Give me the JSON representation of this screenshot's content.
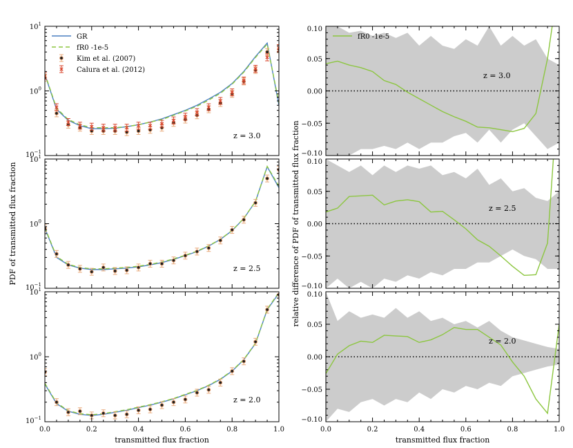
{
  "chart_data": [
    {
      "type": "line",
      "panel": "left-top",
      "yscale": "log",
      "ylim": [
        0.1,
        10
      ],
      "xlim": [
        0.0,
        1.0
      ],
      "ytick_labels": [
        {
          "base": "10",
          "exp": "1"
        },
        {
          "base": "10",
          "exp": "0"
        },
        {
          "base": "10",
          "exp": "−1"
        }
      ],
      "annotation": "z = 3.0",
      "legend": {
        "position": "top-left",
        "entries": [
          "GR",
          "fR0 -1e-5",
          "Kim et al. (2007)",
          "Calura et al. (2012)"
        ]
      },
      "series": [
        {
          "name": "GR",
          "color": "#4a7fc1",
          "x": [
            0,
            0.05,
            0.1,
            0.15,
            0.2,
            0.25,
            0.3,
            0.35,
            0.4,
            0.45,
            0.5,
            0.55,
            0.6,
            0.65,
            0.7,
            0.75,
            0.8,
            0.85,
            0.9,
            0.95,
            1.0
          ],
          "values": [
            1.8,
            0.52,
            0.35,
            0.29,
            0.26,
            0.26,
            0.265,
            0.28,
            0.3,
            0.33,
            0.37,
            0.43,
            0.5,
            0.6,
            0.75,
            0.95,
            1.3,
            2.0,
            3.4,
            5.5,
            0.6
          ]
        },
        {
          "name": "fR0 -1e-5",
          "color": "#8cc63f",
          "x": [
            0,
            0.05,
            0.1,
            0.15,
            0.2,
            0.25,
            0.3,
            0.35,
            0.4,
            0.45,
            0.5,
            0.55,
            0.6,
            0.65,
            0.7,
            0.75,
            0.8,
            0.85,
            0.9,
            0.95,
            1.0
          ],
          "values": [
            1.85,
            0.54,
            0.36,
            0.3,
            0.27,
            0.27,
            0.27,
            0.28,
            0.3,
            0.33,
            0.36,
            0.42,
            0.49,
            0.58,
            0.72,
            0.92,
            1.27,
            1.95,
            3.3,
            5.3,
            0.65
          ]
        },
        {
          "name": "Kim et al. (2007)",
          "x": [
            0,
            0.05,
            0.1,
            0.15,
            0.2,
            0.25,
            0.3,
            0.35,
            0.4,
            0.45,
            0.5,
            0.55,
            0.6,
            0.65,
            0.7,
            0.75,
            0.8,
            0.85,
            0.9,
            0.95,
            1.0
          ],
          "values": [
            1.6,
            0.45,
            0.3,
            0.27,
            0.24,
            0.24,
            0.24,
            0.23,
            0.24,
            0.25,
            0.27,
            0.32,
            0.36,
            0.42,
            0.52,
            0.65,
            0.9,
            1.4,
            2.1,
            4.0,
            4.4
          ]
        },
        {
          "name": "Calura et al. (2012)",
          "x": [
            0,
            0.05,
            0.1,
            0.15,
            0.2,
            0.25,
            0.3,
            0.35,
            0.4,
            0.45,
            0.5,
            0.55,
            0.6,
            0.65,
            0.7,
            0.75,
            0.8,
            0.85,
            0.9,
            0.95,
            1.0
          ],
          "values": [
            1.7,
            0.56,
            0.33,
            0.29,
            0.28,
            0.27,
            0.27,
            0.27,
            0.29,
            0.29,
            0.31,
            0.35,
            0.4,
            0.47,
            0.56,
            0.7,
            0.95,
            1.45,
            2.2,
            3.3,
            4.6
          ]
        }
      ]
    },
    {
      "type": "line",
      "panel": "left-middle",
      "yscale": "log",
      "ylim": [
        0.1,
        10
      ],
      "xlim": [
        0.0,
        1.0
      ],
      "ytick_labels": [
        {
          "base": "10",
          "exp": "1"
        },
        {
          "base": "10",
          "exp": "0"
        },
        {
          "base": "10",
          "exp": "−1"
        }
      ],
      "ylabel": "PDF of transmitted flux fraction",
      "annotation": "z = 2.5",
      "series": [
        {
          "name": "GR",
          "color": "#4a7fc1",
          "x": [
            0,
            0.05,
            0.1,
            0.15,
            0.2,
            0.25,
            0.3,
            0.35,
            0.4,
            0.45,
            0.5,
            0.55,
            0.6,
            0.65,
            0.7,
            0.75,
            0.8,
            0.85,
            0.9,
            0.95,
            1.0
          ],
          "values": [
            0.85,
            0.3,
            0.23,
            0.205,
            0.195,
            0.195,
            0.2,
            0.205,
            0.215,
            0.23,
            0.25,
            0.28,
            0.32,
            0.37,
            0.45,
            0.57,
            0.78,
            1.2,
            2.2,
            7.6,
            3.6
          ]
        },
        {
          "name": "fR0 -1e-5",
          "color": "#8cc63f",
          "x": [
            0,
            0.05,
            0.1,
            0.15,
            0.2,
            0.25,
            0.3,
            0.35,
            0.4,
            0.45,
            0.5,
            0.55,
            0.6,
            0.65,
            0.7,
            0.75,
            0.8,
            0.85,
            0.9,
            0.95,
            1.0
          ],
          "values": [
            0.87,
            0.31,
            0.235,
            0.21,
            0.2,
            0.2,
            0.205,
            0.21,
            0.22,
            0.235,
            0.255,
            0.285,
            0.325,
            0.375,
            0.455,
            0.575,
            0.785,
            1.21,
            2.22,
            7.7,
            3.8
          ]
        },
        {
          "name": "Kim et al. (2007)",
          "x": [
            0,
            0.05,
            0.1,
            0.15,
            0.2,
            0.25,
            0.3,
            0.35,
            0.4,
            0.45,
            0.5,
            0.55,
            0.6,
            0.65,
            0.7,
            0.75,
            0.8,
            0.85,
            0.9,
            0.95,
            1.0
          ],
          "values": [
            0.85,
            0.34,
            0.23,
            0.2,
            0.18,
            0.21,
            0.185,
            0.19,
            0.21,
            0.24,
            0.24,
            0.27,
            0.32,
            0.37,
            0.42,
            0.55,
            0.8,
            1.15,
            2.1,
            5.0,
            6.8
          ]
        }
      ]
    },
    {
      "type": "line",
      "panel": "left-bottom",
      "yscale": "log",
      "ylim": [
        0.1,
        10
      ],
      "xlim": [
        0.0,
        1.0
      ],
      "ytick_labels": [
        {
          "base": "10",
          "exp": "1"
        },
        {
          "base": "10",
          "exp": "0"
        },
        {
          "base": "10",
          "exp": "−1"
        }
      ],
      "xticks": [
        "0.0",
        "0.2",
        "0.4",
        "0.6",
        "0.8",
        "1.0"
      ],
      "xlabel": "transmitted flux fraction",
      "annotation": "z = 2.0",
      "series": [
        {
          "name": "GR",
          "color": "#4a7fc1",
          "x": [
            0,
            0.05,
            0.1,
            0.15,
            0.2,
            0.25,
            0.3,
            0.35,
            0.4,
            0.45,
            0.5,
            0.55,
            0.6,
            0.65,
            0.7,
            0.75,
            0.8,
            0.85,
            0.9,
            0.95,
            1.0
          ],
          "values": [
            0.38,
            0.19,
            0.145,
            0.13,
            0.125,
            0.13,
            0.14,
            0.15,
            0.165,
            0.18,
            0.2,
            0.225,
            0.26,
            0.3,
            0.36,
            0.45,
            0.6,
            0.9,
            1.6,
            5.3,
            9.5
          ]
        },
        {
          "name": "fR0 -1e-5",
          "color": "#8cc63f",
          "x": [
            0,
            0.05,
            0.1,
            0.15,
            0.2,
            0.25,
            0.3,
            0.35,
            0.4,
            0.45,
            0.5,
            0.55,
            0.6,
            0.65,
            0.7,
            0.75,
            0.8,
            0.85,
            0.9,
            0.95,
            1.0
          ],
          "values": [
            0.39,
            0.195,
            0.148,
            0.133,
            0.128,
            0.133,
            0.143,
            0.153,
            0.168,
            0.183,
            0.203,
            0.228,
            0.264,
            0.304,
            0.365,
            0.455,
            0.61,
            0.91,
            1.62,
            5.4,
            9.8
          ]
        },
        {
          "name": "Kim et al. (2007)",
          "x": [
            0,
            0.05,
            0.1,
            0.15,
            0.2,
            0.25,
            0.3,
            0.35,
            0.4,
            0.45,
            0.5,
            0.55,
            0.6,
            0.65,
            0.7,
            0.75,
            0.8,
            0.85,
            0.9,
            0.95,
            1.0
          ],
          "values": [
            0.58,
            0.2,
            0.14,
            0.145,
            0.125,
            0.135,
            0.125,
            0.13,
            0.15,
            0.155,
            0.18,
            0.2,
            0.22,
            0.28,
            0.31,
            0.4,
            0.6,
            0.85,
            1.7,
            5.3,
            9.0
          ]
        }
      ]
    },
    {
      "type": "area",
      "panel": "right-top",
      "ylim": [
        -0.1,
        0.1
      ],
      "xlim": [
        0.0,
        1.0
      ],
      "yticks": [
        "0.10",
        "0.05",
        "0.00",
        "−0.05",
        "−0.10"
      ],
      "annotation": "z = 3.0",
      "legend": {
        "position": "top-left",
        "entries": [
          "fR0 -1e-5"
        ]
      },
      "band": {
        "x": [
          0,
          0.05,
          0.1,
          0.15,
          0.2,
          0.25,
          0.3,
          0.35,
          0.4,
          0.45,
          0.5,
          0.55,
          0.6,
          0.65,
          0.7,
          0.75,
          0.8,
          0.85,
          0.9,
          0.95,
          1.0
        ],
        "upper": [
          0.1,
          0.1,
          0.09,
          0.093,
          0.085,
          0.09,
          0.082,
          0.09,
          0.07,
          0.085,
          0.07,
          0.065,
          0.08,
          0.07,
          0.1,
          0.07,
          0.085,
          0.07,
          0.08,
          0.05,
          0.04
        ],
        "lower": [
          -0.1,
          -0.1,
          -0.1,
          -0.09,
          -0.09,
          -0.085,
          -0.09,
          -0.08,
          -0.09,
          -0.08,
          -0.08,
          -0.07,
          -0.065,
          -0.08,
          -0.06,
          -0.08,
          -0.06,
          -0.05,
          -0.07,
          -0.09,
          -0.08
        ]
      },
      "series": [
        {
          "name": "fR0 -1e-5",
          "color": "#8cc63f",
          "x": [
            0,
            0.05,
            0.1,
            0.15,
            0.2,
            0.25,
            0.3,
            0.35,
            0.4,
            0.45,
            0.5,
            0.55,
            0.6,
            0.65,
            0.7,
            0.75,
            0.8,
            0.85,
            0.9,
            0.95,
            0.97
          ],
          "values": [
            0.042,
            0.046,
            0.04,
            0.036,
            0.03,
            0.016,
            0.01,
            -0.002,
            -0.012,
            -0.022,
            -0.032,
            -0.04,
            -0.047,
            -0.056,
            -0.057,
            -0.06,
            -0.063,
            -0.058,
            -0.035,
            0.05,
            0.1
          ]
        }
      ]
    },
    {
      "type": "area",
      "panel": "right-middle",
      "ylim": [
        -0.1,
        0.1
      ],
      "xlim": [
        0.0,
        1.0
      ],
      "yticks": [
        "0.10",
        "0.05",
        "0.00",
        "−0.05",
        "−0.10"
      ],
      "ylabel": "relative difference of PDF of transmitted flux fraction",
      "annotation": "z = 2.5",
      "band": {
        "x": [
          0,
          0.05,
          0.1,
          0.15,
          0.2,
          0.25,
          0.3,
          0.35,
          0.4,
          0.45,
          0.5,
          0.55,
          0.6,
          0.65,
          0.7,
          0.75,
          0.8,
          0.85,
          0.9,
          0.95,
          1.0
        ],
        "upper": [
          0.1,
          0.09,
          0.08,
          0.09,
          0.075,
          0.09,
          0.08,
          0.09,
          0.085,
          0.09,
          0.075,
          0.08,
          0.07,
          0.085,
          0.06,
          0.07,
          0.05,
          0.055,
          0.04,
          0.035,
          0.05
        ],
        "lower": [
          -0.1,
          -0.085,
          -0.1,
          -0.09,
          -0.1,
          -0.085,
          -0.09,
          -0.08,
          -0.085,
          -0.075,
          -0.08,
          -0.07,
          -0.07,
          -0.06,
          -0.06,
          -0.05,
          -0.04,
          -0.05,
          -0.055,
          -0.07,
          -0.07
        ]
      },
      "series": [
        {
          "name": "fR0 -1e-5",
          "color": "#8cc63f",
          "x": [
            0,
            0.05,
            0.1,
            0.15,
            0.2,
            0.25,
            0.3,
            0.35,
            0.4,
            0.45,
            0.5,
            0.55,
            0.6,
            0.65,
            0.7,
            0.75,
            0.8,
            0.85,
            0.9,
            0.95,
            0.975
          ],
          "values": [
            0.018,
            0.024,
            0.042,
            0.043,
            0.044,
            0.029,
            0.035,
            0.037,
            0.034,
            0.018,
            0.019,
            0.006,
            -0.008,
            -0.025,
            -0.035,
            -0.05,
            -0.066,
            -0.08,
            -0.079,
            -0.03,
            0.1
          ]
        }
      ]
    },
    {
      "type": "area",
      "panel": "right-bottom",
      "ylim": [
        -0.1,
        0.1
      ],
      "xlim": [
        0.0,
        1.0
      ],
      "yticks": [
        "0.10",
        "0.05",
        "0.00",
        "−0.05",
        "−0.10"
      ],
      "xticks": [
        "0.0",
        "0.2",
        "0.4",
        "0.6",
        "0.8",
        "1.0"
      ],
      "xlabel": "transmitted flux fraction",
      "annotation": "z = 2.0",
      "band": {
        "x": [
          0,
          0.05,
          0.1,
          0.15,
          0.2,
          0.25,
          0.3,
          0.35,
          0.4,
          0.45,
          0.5,
          0.55,
          0.6,
          0.65,
          0.7,
          0.75,
          0.8,
          0.85,
          0.9,
          0.95,
          1.0
        ],
        "upper": [
          0.1,
          0.055,
          0.07,
          0.06,
          0.065,
          0.06,
          0.075,
          0.06,
          0.07,
          0.055,
          0.06,
          0.05,
          0.055,
          0.045,
          0.055,
          0.04,
          0.03,
          0.025,
          0.02,
          0.015,
          0.012
        ],
        "lower": [
          -0.1,
          -0.08,
          -0.085,
          -0.07,
          -0.065,
          -0.075,
          -0.065,
          -0.07,
          -0.055,
          -0.065,
          -0.05,
          -0.055,
          -0.045,
          -0.05,
          -0.04,
          -0.045,
          -0.03,
          -0.025,
          -0.02,
          -0.015,
          -0.012
        ]
      },
      "series": [
        {
          "name": "fR0 -1e-5",
          "color": "#8cc63f",
          "x": [
            0,
            0.05,
            0.1,
            0.15,
            0.2,
            0.25,
            0.3,
            0.35,
            0.4,
            0.45,
            0.5,
            0.55,
            0.6,
            0.65,
            0.7,
            0.75,
            0.8,
            0.85,
            0.9,
            0.95,
            1.0
          ],
          "values": [
            -0.026,
            0.004,
            0.017,
            0.024,
            0.022,
            0.033,
            0.032,
            0.031,
            0.022,
            0.026,
            0.034,
            0.045,
            0.042,
            0.042,
            0.03,
            0.018,
            -0.008,
            -0.03,
            -0.065,
            -0.087,
            0.05
          ]
        }
      ]
    }
  ]
}
